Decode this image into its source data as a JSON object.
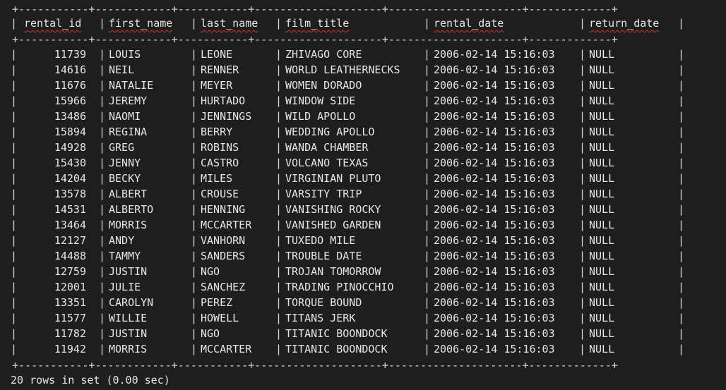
{
  "columns": [
    "rental_id",
    "first_name",
    "last_name",
    "film_title",
    "rental_date",
    "return_date"
  ],
  "rows": [
    [
      "11739",
      "LOUIS",
      "LEONE",
      "ZHIVAGO CORE",
      "2006-02-14 15:16:03",
      "NULL"
    ],
    [
      "14616",
      "NEIL",
      "RENNER",
      "WORLD LEATHERNECKS",
      "2006-02-14 15:16:03",
      "NULL"
    ],
    [
      "11676",
      "NATALIE",
      "MEYER",
      "WOMEN DORADO",
      "2006-02-14 15:16:03",
      "NULL"
    ],
    [
      "15966",
      "JEREMY",
      "HURTADO",
      "WINDOW SIDE",
      "2006-02-14 15:16:03",
      "NULL"
    ],
    [
      "13486",
      "NAOMI",
      "JENNINGS",
      "WILD APOLLO",
      "2006-02-14 15:16:03",
      "NULL"
    ],
    [
      "15894",
      "REGINA",
      "BERRY",
      "WEDDING APOLLO",
      "2006-02-14 15:16:03",
      "NULL"
    ],
    [
      "14928",
      "GREG",
      "ROBINS",
      "WANDA CHAMBER",
      "2006-02-14 15:16:03",
      "NULL"
    ],
    [
      "15430",
      "JENNY",
      "CASTRO",
      "VOLCANO TEXAS",
      "2006-02-14 15:16:03",
      "NULL"
    ],
    [
      "14204",
      "BECKY",
      "MILES",
      "VIRGINIAN PLUTO",
      "2006-02-14 15:16:03",
      "NULL"
    ],
    [
      "13578",
      "ALBERT",
      "CROUSE",
      "VARSITY TRIP",
      "2006-02-14 15:16:03",
      "NULL"
    ],
    [
      "14531",
      "ALBERTO",
      "HENNING",
      "VANISHING ROCKY",
      "2006-02-14 15:16:03",
      "NULL"
    ],
    [
      "13464",
      "MORRIS",
      "MCCARTER",
      "VANISHED GARDEN",
      "2006-02-14 15:16:03",
      "NULL"
    ],
    [
      "12127",
      "ANDY",
      "VANHORN",
      "TUXEDO MILE",
      "2006-02-14 15:16:03",
      "NULL"
    ],
    [
      "14488",
      "TAMMY",
      "SANDERS",
      "TROUBLE DATE",
      "2006-02-14 15:16:03",
      "NULL"
    ],
    [
      "12759",
      "JUSTIN",
      "NGO",
      "TROJAN TOMORROW",
      "2006-02-14 15:16:03",
      "NULL"
    ],
    [
      "12001",
      "JULIE",
      "SANCHEZ",
      "TRADING PINOCCHIO",
      "2006-02-14 15:16:03",
      "NULL"
    ],
    [
      "13351",
      "CAROLYN",
      "PEREZ",
      "TORQUE BOUND",
      "2006-02-14 15:16:03",
      "NULL"
    ],
    [
      "11577",
      "WILLIE",
      "HOWELL",
      "TITANS JERK",
      "2006-02-14 15:16:03",
      "NULL"
    ],
    [
      "11782",
      "JUSTIN",
      "NGO",
      "TITANIC BOONDOCK",
      "2006-02-14 15:16:03",
      "NULL"
    ],
    [
      "11942",
      "MORRIS",
      "MCCARTER",
      "TITANIC BOONDOCK",
      "2006-02-14 15:16:03",
      "NULL"
    ]
  ],
  "border": "+-----------+------------+-----------+--------------------+---------------------+-------------+",
  "status": "20 rows in set (0.00 sec)",
  "colors": {
    "background": "#1e1e1e",
    "text": "#e6e6e6",
    "squiggle": "#d43131"
  }
}
